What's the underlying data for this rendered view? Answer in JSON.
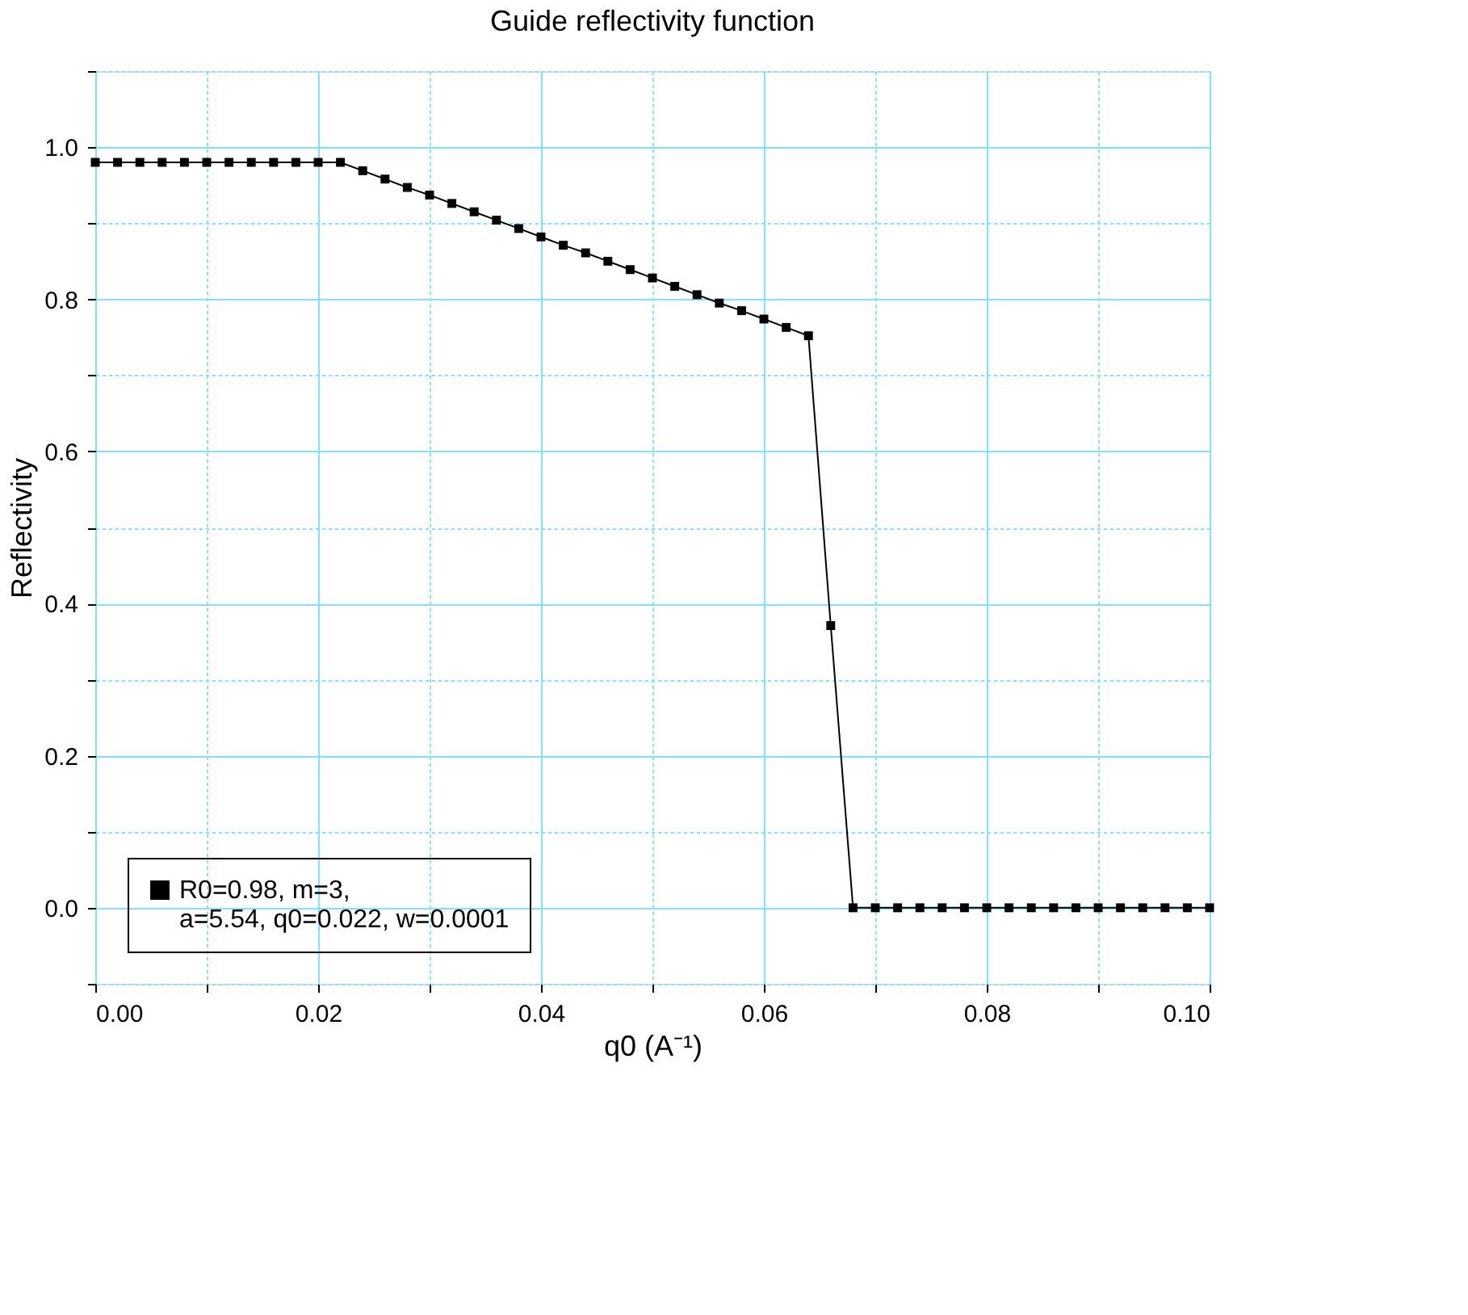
{
  "chart_data": {
    "type": "line",
    "title": "Guide reflectivity function",
    "xlabel": "q0 (A⁻¹)",
    "ylabel": "Reflectivity",
    "x": [
      0,
      0.002,
      0.004,
      0.006,
      0.008,
      0.01,
      0.012,
      0.014,
      0.016,
      0.018,
      0.02,
      0.022,
      0.024,
      0.026,
      0.028,
      0.03,
      0.032,
      0.034,
      0.036,
      0.038,
      0.04,
      0.042,
      0.044,
      0.046,
      0.048,
      0.05,
      0.052,
      0.054,
      0.056,
      0.058,
      0.06,
      0.062,
      0.064,
      0.066,
      0.068,
      0.07,
      0.072,
      0.074,
      0.076,
      0.078,
      0.08,
      0.082,
      0.084,
      0.086,
      0.088,
      0.09,
      0.092,
      0.094,
      0.096,
      0.098,
      0.1
    ],
    "series": [
      {
        "name": "R0=0.98, m=3,\na=5.54, q0=0.022, w=0.0001",
        "color": "#000000",
        "values": [
          0.98,
          0.98,
          0.98,
          0.98,
          0.98,
          0.98,
          0.98,
          0.98,
          0.98,
          0.98,
          0.98,
          0.98,
          0.969,
          0.958,
          0.947,
          0.937,
          0.926,
          0.915,
          0.904,
          0.893,
          0.882,
          0.871,
          0.861,
          0.85,
          0.839,
          0.828,
          0.817,
          0.806,
          0.795,
          0.785,
          0.774,
          0.763,
          0.752,
          0.371,
          0,
          0,
          0,
          0,
          0,
          0,
          0,
          0,
          0,
          0,
          0,
          0,
          0,
          0,
          0,
          0,
          0
        ]
      }
    ],
    "xlim": [
      0,
      0.1
    ],
    "ylim": [
      -0.1,
      1.1
    ],
    "xticks": [
      {
        "value": 0,
        "label": "0.00"
      },
      {
        "value": 0.01,
        "label": null
      },
      {
        "value": 0.02,
        "label": "0.02"
      },
      {
        "value": 0.03,
        "label": null
      },
      {
        "value": 0.04,
        "label": "0.04"
      },
      {
        "value": 0.05,
        "label": null
      },
      {
        "value": 0.06,
        "label": "0.06"
      },
      {
        "value": 0.07,
        "label": null
      },
      {
        "value": 0.08,
        "label": "0.08"
      },
      {
        "value": 0.09,
        "label": null
      },
      {
        "value": 0.1,
        "label": "0.10"
      }
    ],
    "yticks": [
      {
        "value": -0.1,
        "label": null
      },
      {
        "value": 0,
        "label": "0.0"
      },
      {
        "value": 0.1,
        "label": null
      },
      {
        "value": 0.2,
        "label": "0.2"
      },
      {
        "value": 0.3,
        "label": null
      },
      {
        "value": 0.4,
        "label": "0.4"
      },
      {
        "value": 0.5,
        "label": null
      },
      {
        "value": 0.6,
        "label": "0.6"
      },
      {
        "value": 0.7,
        "label": null
      },
      {
        "value": 0.8,
        "label": "0.8"
      },
      {
        "value": 0.9,
        "label": null
      },
      {
        "value": 1.0,
        "label": "1.0"
      },
      {
        "value": 1.1,
        "label": null
      }
    ],
    "grid": true,
    "legend": "bottom left",
    "marker": "square",
    "line_style": "solid"
  }
}
